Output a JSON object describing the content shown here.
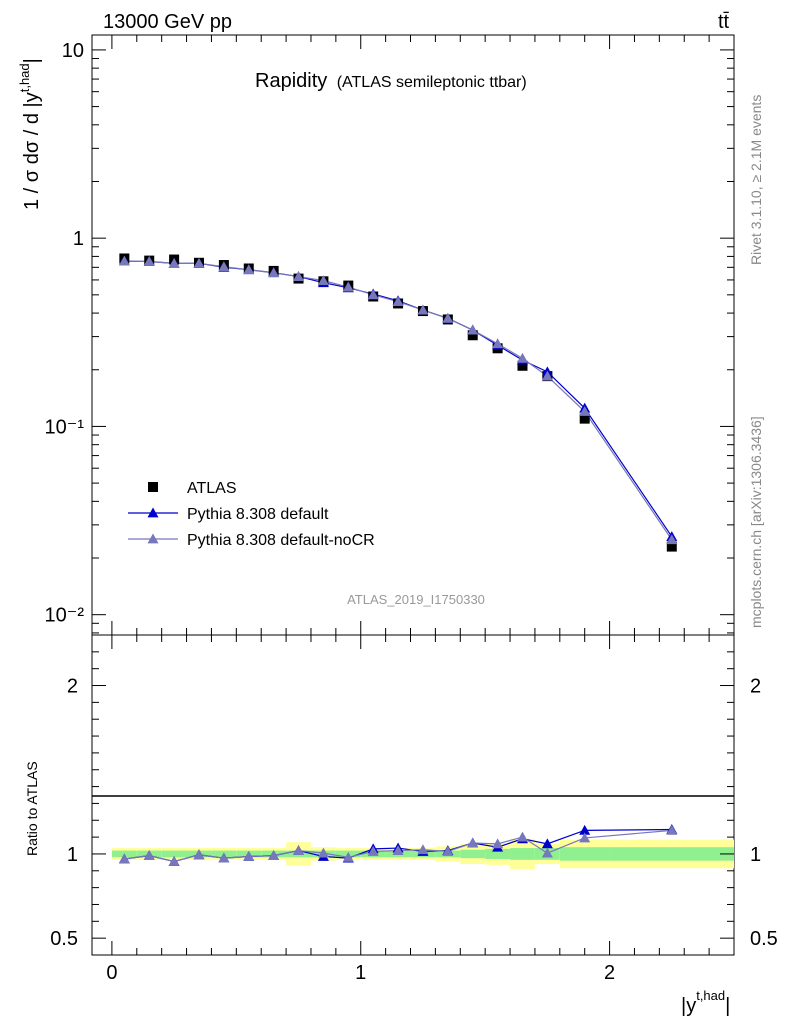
{
  "header": {
    "energy_label": "13000 GeV pp",
    "process_label": "tt̄"
  },
  "side_labels": {
    "rivet": "Rivet 3.1.10, ≥ 2.1M events",
    "mcplots": "mcplots.cern.ch [arXiv:1306.3436]"
  },
  "plot_title": {
    "main": "Rapidity",
    "sub": "(ATLAS semileptonic ttbar)"
  },
  "analysis_id": "ATLAS_2019_I1750330",
  "main_ylabel": "1 / σ dσ / d |y^{t,had}|",
  "ratio_ylabel": "Ratio to ATLAS",
  "xlabel": "|y^{t,had}|",
  "chart_data": [
    {
      "type": "scatter",
      "panel": "main",
      "ylog": true,
      "xlim": [
        -0.08,
        2.5
      ],
      "ylim": [
        0.0078,
        12
      ],
      "y_tick_labels": [
        "10⁻²",
        "10⁻¹",
        "1",
        "10"
      ],
      "x_bins": [
        0,
        0.1,
        0.2,
        0.3,
        0.4,
        0.5,
        0.6,
        0.7,
        0.8,
        0.9,
        1.0,
        1.1,
        1.2,
        1.3,
        1.4,
        1.5,
        1.6,
        1.7,
        1.8,
        2.0,
        2.5
      ],
      "x": [
        0.05,
        0.15,
        0.25,
        0.35,
        0.45,
        0.55,
        0.65,
        0.75,
        0.85,
        0.95,
        1.05,
        1.15,
        1.25,
        1.35,
        1.45,
        1.55,
        1.65,
        1.75,
        1.9,
        2.25
      ],
      "series": [
        {
          "name": "ATLAS",
          "color": "#000000",
          "marker": "square",
          "values": [
            0.78,
            0.76,
            0.77,
            0.74,
            0.72,
            0.69,
            0.67,
            0.61,
            0.59,
            0.56,
            0.49,
            0.45,
            0.41,
            0.37,
            0.305,
            0.26,
            0.21,
            0.185,
            0.11,
            0.023
          ]
        },
        {
          "name": "Pythia 8.308 default",
          "color": "#0000cc",
          "marker": "triangle",
          "values": [
            0.755,
            0.752,
            0.735,
            0.735,
            0.7,
            0.68,
            0.655,
            0.625,
            0.58,
            0.545,
            0.505,
            0.465,
            0.415,
            0.375,
            0.325,
            0.27,
            0.225,
            0.195,
            0.125,
            0.026
          ]
        },
        {
          "name": "Pythia 8.308 default-noCR",
          "color": "#7777bb",
          "marker": "triangle",
          "values": [
            0.755,
            0.752,
            0.735,
            0.735,
            0.705,
            0.68,
            0.655,
            0.625,
            0.595,
            0.55,
            0.5,
            0.46,
            0.415,
            0.375,
            0.325,
            0.275,
            0.23,
            0.185,
            0.12,
            0.025
          ]
        }
      ]
    },
    {
      "type": "scatter",
      "panel": "ratio",
      "xlim": [
        -0.08,
        2.5
      ],
      "ylim": [
        0.4,
        2.3
      ],
      "y_ticks": [
        0.5,
        1,
        2
      ],
      "y_tick_labels": [
        "0.5",
        "1",
        "2"
      ],
      "x_ticks": [
        0,
        1,
        2
      ],
      "x_tick_labels": [
        "0",
        "1",
        "2"
      ],
      "x": [
        0.05,
        0.15,
        0.25,
        0.35,
        0.45,
        0.55,
        0.65,
        0.75,
        0.85,
        0.95,
        1.05,
        1.15,
        1.25,
        1.35,
        1.45,
        1.55,
        1.65,
        1.75,
        1.9,
        2.25
      ],
      "bands": {
        "x_edges": [
          0,
          0.1,
          0.2,
          0.3,
          0.4,
          0.5,
          0.6,
          0.7,
          0.8,
          0.9,
          1.0,
          1.1,
          1.2,
          1.3,
          1.4,
          1.5,
          1.6,
          1.7,
          1.8,
          2.0,
          2.5
        ],
        "stat": [
          0.02,
          0.02,
          0.02,
          0.02,
          0.02,
          0.02,
          0.02,
          0.02,
          0.02,
          0.02,
          0.02,
          0.02,
          0.02,
          0.02,
          0.025,
          0.03,
          0.035,
          0.035,
          0.04,
          0.04
        ],
        "total": [
          0.035,
          0.035,
          0.035,
          0.035,
          0.035,
          0.035,
          0.035,
          0.07,
          0.04,
          0.035,
          0.035,
          0.035,
          0.035,
          0.045,
          0.06,
          0.065,
          0.09,
          0.06,
          0.085,
          0.085
        ],
        "stat_color": "#90f090",
        "total_color": "#ffff99"
      },
      "series": [
        {
          "name": "Pythia 8.308 default",
          "color": "#0000cc",
          "values": [
            0.97,
            0.99,
            0.955,
            0.995,
            0.975,
            0.985,
            0.99,
            1.02,
            0.985,
            0.975,
            1.03,
            1.035,
            1.015,
            1.02,
            1.065,
            1.04,
            1.09,
            1.06,
            1.14,
            1.145
          ]
        },
        {
          "name": "Pythia 8.308 default-noCR",
          "color": "#7777bb",
          "values": [
            0.97,
            0.99,
            0.955,
            0.995,
            0.975,
            0.985,
            0.99,
            1.02,
            1.005,
            0.98,
            1.015,
            1.02,
            1.025,
            1.015,
            1.065,
            1.06,
            1.1,
            1.005,
            1.095,
            1.14
          ]
        }
      ]
    }
  ]
}
